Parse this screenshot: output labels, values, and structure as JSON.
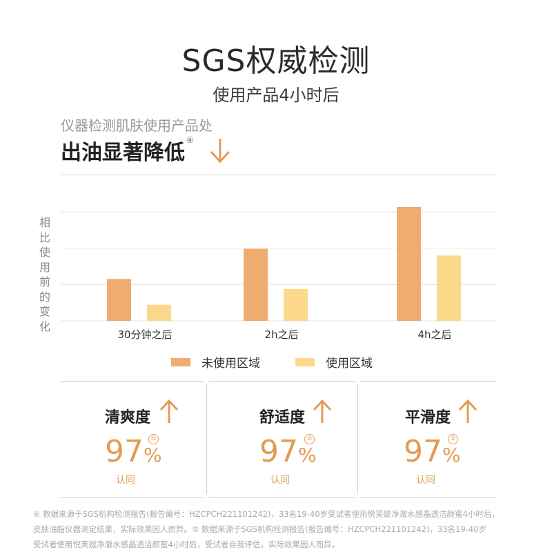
{
  "header": {
    "title": "SGS权威检测",
    "subtitle": "使用产品4小时后"
  },
  "claim": {
    "small": "仪器检测肌肤使用产品处",
    "big": "出油显著降低",
    "note": "④",
    "arrow_icon": "down-arrow-icon"
  },
  "chart_data": {
    "type": "bar",
    "ylabel": "相比使用前的变化",
    "categories": [
      "30分钟之后",
      "2h之后",
      "4h之后"
    ],
    "series": [
      {
        "name": "未使用区域",
        "values": [
          1.25,
          2.15,
          3.4
        ],
        "color": "#f0ac70"
      },
      {
        "name": "使用区域",
        "values": [
          0.48,
          0.95,
          1.95
        ],
        "color": "#fcd98a"
      }
    ],
    "ylim": [
      0,
      3.5
    ],
    "gridlines": [
      0,
      1,
      2,
      3
    ],
    "grid": true,
    "legend": "bottom"
  },
  "cards": [
    {
      "title": "清爽度",
      "value": "97",
      "unit": "%",
      "note": "⑤",
      "label": "认同",
      "arrow_icon": "up-arrow-icon"
    },
    {
      "title": "舒适度",
      "value": "97",
      "unit": "%",
      "note": "⑤",
      "label": "认同",
      "arrow_icon": "up-arrow-icon"
    },
    {
      "title": "平滑度",
      "value": "97",
      "unit": "%",
      "note": "⑤",
      "label": "认同",
      "arrow_icon": "up-arrow-icon"
    }
  ],
  "footnote": {
    "line1": "④ 数据来源于SGS机构检测报告(报告编号：HZCPCH221101242)，33名19-40岁受试者使用悦芙媞净澈水感晶透洁颜蜜4小时后，",
    "line2": "皮肤油脂仪器测定结果，实际效果因人而异。⑤ 数据来源于SGS机构检测报告(报告编号：HZCPCH221101242)，33名19-40岁",
    "line3": "受试者使用悦芙媞净澈水感晶透洁颜蜜4小时后，受试者自我评估，实际效果因人而异。"
  },
  "colors": {
    "accent": "#e39b54",
    "arrow": "#e39b54"
  }
}
